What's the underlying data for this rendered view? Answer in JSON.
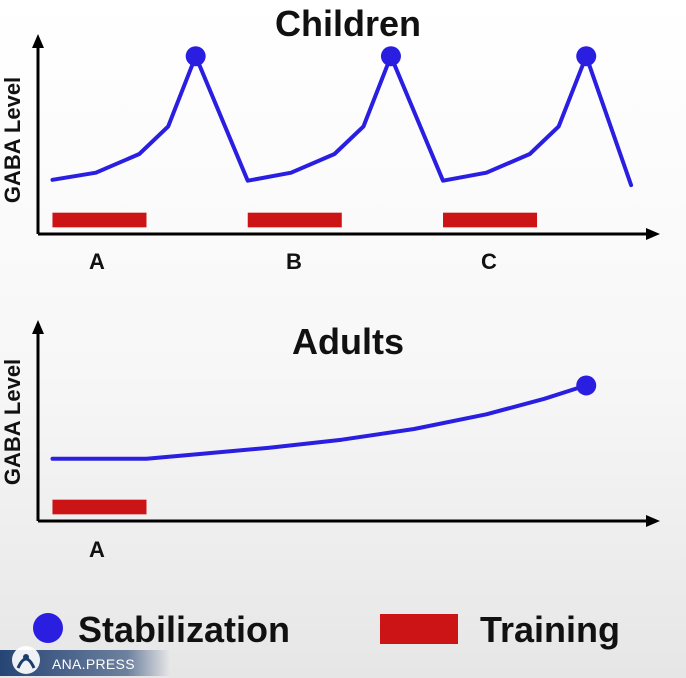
{
  "chart_data": [
    {
      "type": "line",
      "title": "Children",
      "ylabel": "GABA Level",
      "xlabel": "",
      "categories": [
        "A",
        "B",
        "C"
      ],
      "training_periods": [
        [
          0.0,
          0.65
        ],
        [
          1.35,
          2.0
        ],
        [
          2.7,
          3.35
        ]
      ],
      "series": [
        {
          "name": "GABA Level",
          "x": [
            0.0,
            0.3,
            0.6,
            0.8,
            0.99,
            1.35,
            1.65,
            1.95,
            2.15,
            2.34,
            2.7,
            3.0,
            3.3,
            3.5,
            3.69,
            4.0
          ],
          "values": [
            0.72,
            0.88,
            1.3,
            1.92,
            3.5,
            0.7,
            0.88,
            1.3,
            1.92,
            3.5,
            0.7,
            0.88,
            1.3,
            1.92,
            3.5,
            0.6
          ]
        }
      ],
      "stabilization_points": [
        [
          0.99,
          3.5
        ],
        [
          2.34,
          3.5
        ],
        [
          3.69,
          3.5
        ]
      ],
      "xlim": [
        -0.1,
        4.2
      ],
      "ylim": [
        -0.5,
        4.0
      ]
    },
    {
      "type": "line",
      "title": "Adults",
      "ylabel": "GABA Level",
      "xlabel": "",
      "categories": [
        "A"
      ],
      "training_periods": [
        [
          0.0,
          0.65
        ]
      ],
      "series": [
        {
          "name": "GABA Level",
          "x": [
            0.0,
            0.65,
            1.0,
            1.5,
            2.0,
            2.5,
            3.0,
            3.4,
            3.69
          ],
          "values": [
            0.9,
            0.9,
            1.0,
            1.15,
            1.33,
            1.57,
            1.9,
            2.25,
            2.55
          ]
        }
      ],
      "stabilization_points": [
        [
          3.69,
          2.55
        ]
      ],
      "xlim": [
        -0.1,
        4.2
      ],
      "ylim": [
        -0.5,
        4.0
      ]
    }
  ],
  "legend": {
    "stabilization_label": "Stabilization",
    "training_label": "Training"
  },
  "colors": {
    "line": "#2a1fe0",
    "marker": "#2a1fe0",
    "training": "#cc1316",
    "axis": "#000000"
  },
  "watermark": {
    "text": "ANA.PRESS"
  }
}
